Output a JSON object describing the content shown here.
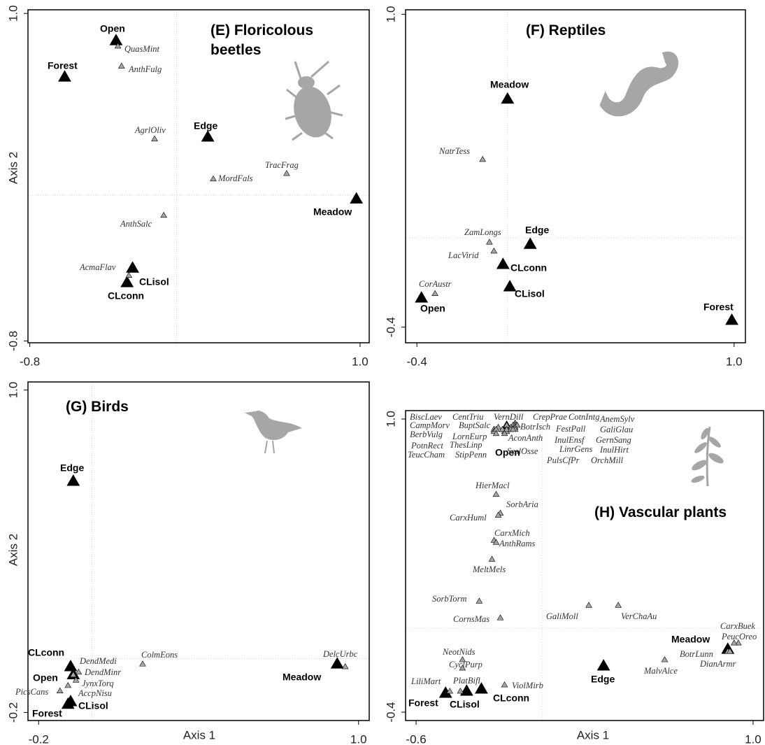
{
  "chart_data": [
    {
      "type": "scatter",
      "title": "(E) Floricolous beetles",
      "ylabel": "Axis 2",
      "xlim": [
        -0.81,
        1.05
      ],
      "ylim": [
        -0.81,
        1.02
      ],
      "xticks": [
        -0.8,
        {
          "value": 1,
          "label": "1.0"
        }
      ],
      "yticks": [
        -0.8,
        {
          "value": 1,
          "label": "1.0"
        }
      ],
      "series": [
        {
          "color": "#000000",
          "labels": [
            "Open",
            "Forest",
            "Edge",
            "Meadow",
            "CLisol",
            "CLconn"
          ],
          "x": [
            -0.33,
            -0.61,
            0.17,
            0.98,
            -0.27,
            -0.24
          ],
          "values": [
            0.85,
            0.65,
            0.32,
            -0.02,
            -0.48,
            -0.4
          ]
        },
        {
          "color": "#a6a6a6",
          "labels": [
            "QuasMint",
            "AnthFulg",
            "AgrlOliv",
            "TracFrag",
            "MordFals",
            "AnthSalc",
            "AcmaFlav"
          ],
          "x": [
            -0.32,
            -0.3,
            -0.12,
            0.6,
            0.2,
            -0.07,
            -0.26
          ],
          "values": [
            0.82,
            0.71,
            0.31,
            0.12,
            0.09,
            -0.11,
            -0.44
          ]
        }
      ]
    },
    {
      "type": "scatter",
      "title": "(F) Reptiles",
      "xlim": [
        -0.45,
        1.05
      ],
      "ylim": [
        -0.47,
        1.02
      ],
      "xticks": [
        -0.4,
        {
          "value": 1,
          "label": "1.0"
        }
      ],
      "yticks": [
        -0.4,
        {
          "value": 1,
          "label": "1.0"
        }
      ],
      "series": [
        {
          "color": "#000000",
          "labels": [
            "Meadow",
            "Edge",
            "CLconn",
            "CLisol",
            "Open",
            "Forest"
          ],
          "x": [
            0.0,
            0.1,
            -0.02,
            0.01,
            -0.38,
            0.99
          ],
          "values": [
            0.62,
            -0.03,
            -0.12,
            -0.22,
            -0.27,
            -0.37
          ]
        },
        {
          "color": "#a6a6a6",
          "labels": [
            "NatrTess",
            "ZamLongs",
            "LacVirid",
            "CorAustr"
          ],
          "x": [
            -0.11,
            -0.08,
            -0.06,
            -0.32
          ],
          "values": [
            0.35,
            -0.02,
            -0.06,
            -0.25
          ]
        }
      ]
    },
    {
      "type": "scatter",
      "title": "(G) Birds",
      "xlabel": "Axis 1",
      "ylabel": "Axis 2",
      "xlim": [
        -0.24,
        1.04
      ],
      "ylim": [
        -0.23,
        1.03
      ],
      "xticks": [
        -0.2,
        {
          "value": 1,
          "label": "1.0"
        }
      ],
      "yticks": [
        -0.2,
        {
          "value": 1,
          "label": "1.0"
        }
      ],
      "series": [
        {
          "color": "#000000",
          "labels": [
            "Edge",
            "CLconn",
            "Open",
            "Meadow",
            "CLisol",
            "Forest"
          ],
          "x": [
            -0.07,
            -0.08,
            -0.07,
            0.92,
            -0.08,
            -0.09
          ],
          "values": [
            0.66,
            -0.03,
            -0.06,
            -0.02,
            -0.16,
            -0.17
          ]
        },
        {
          "color": "#a6a6a6",
          "labels": [
            "DendMedi",
            "ColmEons",
            "DelcUrbc",
            "DendMinr",
            "JynxTorq",
            "AccpNisu",
            "PicsCans"
          ],
          "x": [
            -0.05,
            0.19,
            0.95,
            -0.07,
            -0.06,
            -0.09,
            -0.12
          ],
          "values": [
            -0.05,
            -0.02,
            -0.03,
            -0.06,
            -0.08,
            -0.1,
            -0.12
          ]
        }
      ]
    },
    {
      "type": "scatter",
      "title": "(H) Vascular plants",
      "xlabel": "Axis 1",
      "xlim": [
        -0.65,
        1.05
      ],
      "ylim": [
        -0.44,
        1.04
      ],
      "xticks": [
        -0.6,
        {
          "value": 1,
          "label": "1.0"
        }
      ],
      "yticks": [
        -0.4,
        {
          "value": 1,
          "label": "1.0"
        }
      ],
      "series": [
        {
          "color": "#000000",
          "labels": [
            "Open",
            "Meadow",
            "Edge",
            "Forest",
            "CLisol",
            "CLconn"
          ],
          "x": [
            -0.17,
            0.88,
            0.29,
            -0.46,
            -0.36,
            -0.29
          ],
          "values": [
            0.96,
            -0.1,
            -0.18,
            -0.31,
            -0.3,
            -0.29
          ]
        },
        {
          "color": "#a6a6a6",
          "labels": [
            "BiscLaev",
            "CentTriu",
            "VernDill",
            "CrepPrae",
            "CotnIntg",
            "AnemSylv",
            "CampMorv",
            "BuptSalc",
            "BotrIsch",
            "FestPall",
            "GaliGlau",
            "BerbVulg",
            "LornEurp",
            "AconAnth",
            "InulEnsf",
            "GernSang",
            "PotnRect",
            "ThesLinp",
            "SeslOsse",
            "LinrGens",
            "InulHirt",
            "TeucCham",
            "StipPenn",
            "PulsCfPr",
            "OrchMill",
            "HierMacl",
            "SorbAria",
            "CarxHuml",
            "CarxMich",
            "AnthRams",
            "MeltMels",
            "SorbTorm",
            "CornsMas",
            "GaliMoll",
            "VerChaAu",
            "CarxBuek",
            "PeucOreo",
            "BotrLunn",
            "DianArmr",
            "MalvAlce",
            "NeotNids",
            "CyclPurp",
            "LiliMart",
            "PlatBifl",
            "ViolMirb"
          ],
          "x": [
            -0.23,
            -0.21,
            -0.17,
            -0.13,
            -0.12,
            -0.13,
            -0.23,
            -0.19,
            -0.14,
            -0.13,
            -0.12,
            -0.23,
            -0.18,
            -0.17,
            -0.13,
            -0.13,
            -0.22,
            -0.19,
            -0.17,
            -0.15,
            -0.13,
            -0.22,
            -0.18,
            -0.15,
            -0.14,
            -0.22,
            -0.2,
            -0.21,
            -0.23,
            -0.22,
            -0.24,
            -0.3,
            -0.2,
            0.22,
            0.36,
            0.93,
            0.91,
            0.88,
            0.89,
            0.58,
            -0.38,
            -0.38,
            -0.44,
            -0.39,
            -0.18
          ],
          "values": [
            0.95,
            0.96,
            0.97,
            0.98,
            0.97,
            0.98,
            0.95,
            0.95,
            0.97,
            0.97,
            0.97,
            0.94,
            0.94,
            0.94,
            0.96,
            0.96,
            0.95,
            0.95,
            0.95,
            0.96,
            0.95,
            0.93,
            0.93,
            0.95,
            0.95,
            0.64,
            0.55,
            0.54,
            0.42,
            0.41,
            0.33,
            0.13,
            0.05,
            0.11,
            0.11,
            -0.07,
            -0.07,
            -0.11,
            -0.11,
            -0.15,
            -0.15,
            -0.19,
            -0.3,
            -0.3,
            -0.27
          ]
        }
      ]
    }
  ]
}
